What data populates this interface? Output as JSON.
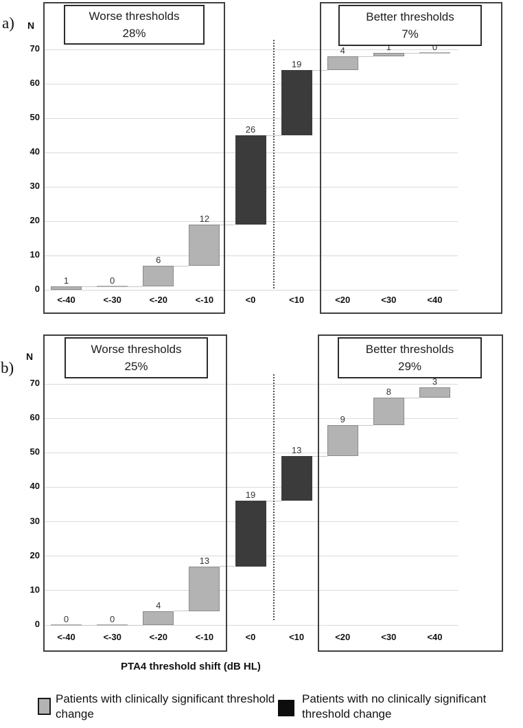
{
  "figure": {
    "panels": [
      {
        "panel_label": "a)",
        "y_axis_label": "N",
        "worse_box": {
          "title": "Worse thresholds",
          "pct": "28%"
        },
        "better_box": {
          "title": "Better thresholds",
          "pct": "7%"
        }
      },
      {
        "panel_label": "b)",
        "y_axis_label": "N",
        "worse_box": {
          "title": "Worse thresholds",
          "pct": "25%"
        },
        "better_box": {
          "title": "Better thresholds",
          "pct": "29%"
        }
      }
    ],
    "x_axis_title": "PTA4 threshold shift (dB HL)",
    "legend": [
      {
        "swatch": "gray",
        "label": "Patients with clinically significant threshold change"
      },
      {
        "swatch": "black",
        "label": "Patients with no clinically significant threshold change"
      }
    ]
  },
  "colors": {
    "significant_gray": "#b3b3b3",
    "gray_bar_border": "#8a8a8a",
    "nonsignificant_dark": "#3b3b3b",
    "gridline": "#d9d9d9",
    "connector": "#c6c6c6",
    "zero_bar_line": "#b0b0b0"
  },
  "chart_data": [
    {
      "type": "bar",
      "subtype": "waterfall",
      "panel": "a",
      "title_worse": "Worse thresholds 28%",
      "title_better": "Better thresholds 7%",
      "categories": [
        "<-40",
        "<-30",
        "<-20",
        "<-10",
        "<0",
        "<10",
        "<20",
        "<30",
        "<40"
      ],
      "values": [
        1,
        0,
        6,
        12,
        26,
        19,
        4,
        1,
        0
      ],
      "cumulative_start": [
        0,
        1,
        1,
        7,
        19,
        45,
        64,
        68,
        69
      ],
      "cumulative_end": [
        1,
        1,
        7,
        19,
        45,
        64,
        68,
        69,
        69
      ],
      "bar_colors": [
        "gray",
        "gray",
        "gray",
        "gray",
        "dark",
        "dark",
        "gray",
        "gray",
        "gray"
      ],
      "ylabel": "N",
      "xlabel": "PTA4 threshold shift (dB HL)",
      "ylim": [
        0,
        70
      ],
      "yticks": [
        0,
        10,
        20,
        30,
        40,
        50,
        60,
        70
      ],
      "grid": true,
      "legend_position": "bottom"
    },
    {
      "type": "bar",
      "subtype": "waterfall",
      "panel": "b",
      "title_worse": "Worse thresholds 25%",
      "title_better": "Better thresholds 29%",
      "categories": [
        "<-40",
        "<-30",
        "<-20",
        "<-10",
        "<0",
        "<10",
        "<20",
        "<30",
        "<40"
      ],
      "values": [
        0,
        0,
        4,
        13,
        19,
        13,
        9,
        8,
        3
      ],
      "cumulative_start": [
        0,
        0,
        0,
        4,
        17,
        36,
        49,
        58,
        66
      ],
      "cumulative_end": [
        0,
        0,
        4,
        17,
        36,
        49,
        58,
        66,
        69
      ],
      "bar_colors": [
        "gray",
        "gray",
        "gray",
        "gray",
        "dark",
        "dark",
        "gray",
        "gray",
        "gray"
      ],
      "ylabel": "N",
      "xlabel": "PTA4 threshold shift (dB HL)",
      "ylim": [
        0,
        70
      ],
      "yticks": [
        0,
        10,
        20,
        30,
        40,
        50,
        60,
        70
      ],
      "grid": true,
      "legend_position": "bottom"
    }
  ]
}
